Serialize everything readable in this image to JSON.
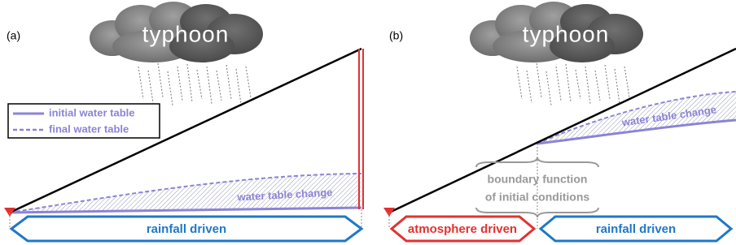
{
  "panels": [
    {
      "label": "(a)",
      "cloud": "typhoon",
      "legend": [
        "initial water table",
        "final water table"
      ],
      "annotation": "water table change",
      "zone": "rainfall driven"
    },
    {
      "label": "(b)",
      "cloud": "typhoon",
      "annotation": "water table change",
      "boundary": [
        "boundary function",
        "of initial conditions"
      ],
      "zones": [
        "atmosphere driven",
        "rainfall driven"
      ]
    }
  ]
}
